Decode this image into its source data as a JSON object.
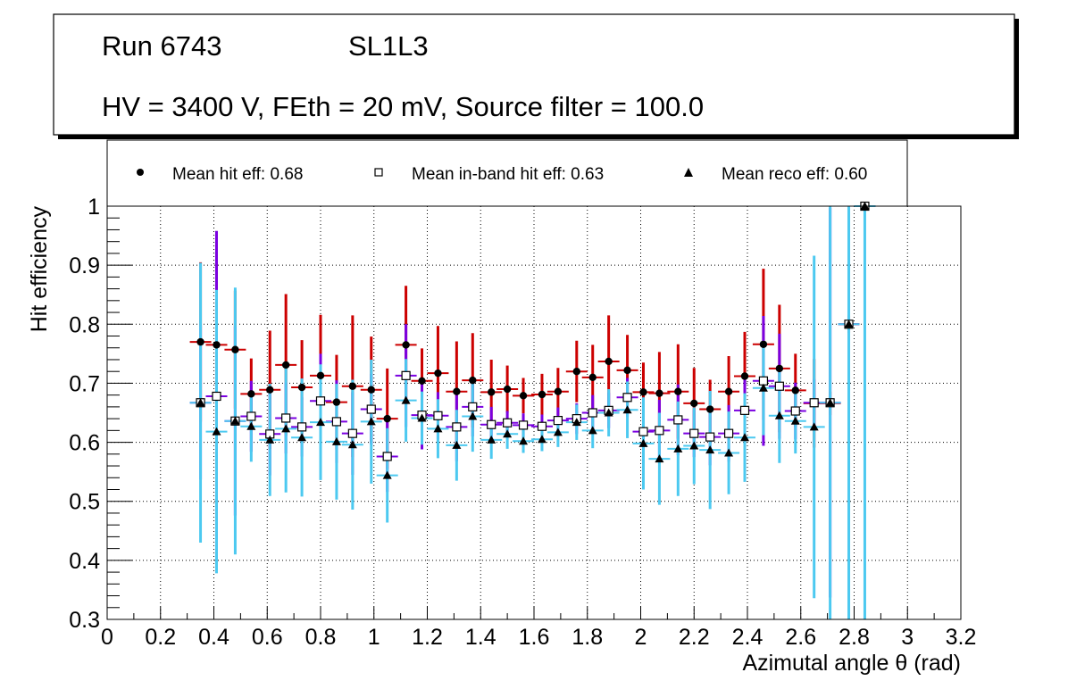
{
  "header": {
    "run": "Run 6743",
    "chamber": "SL1L3",
    "conditions": "HV = 3400 V, FEth = 20 mV, Source filter = 100.0"
  },
  "legend": {
    "hit": "Mean hit  eff: 0.68",
    "inband": "Mean in-band hit eff: 0.63",
    "reco": "Mean reco eff: 0.60"
  },
  "chart_data": {
    "type": "scatter",
    "xlabel": "Azimutal angle θ (rad)",
    "ylabel": "Hit efficiency",
    "xlim": [
      0,
      3.2
    ],
    "ylim": [
      0.3,
      1.0
    ],
    "grid": true,
    "legend_position": "top",
    "x_ticks": [
      "0",
      "0.2",
      "0.4",
      "0.6",
      "0.8",
      "1",
      "1.2",
      "1.4",
      "1.6",
      "1.8",
      "2",
      "2.2",
      "2.4",
      "2.6",
      "2.8",
      "3",
      "3.2"
    ],
    "y_ticks": [
      "0.3",
      "0.4",
      "0.5",
      "0.6",
      "0.7",
      "0.8",
      "0.9",
      "1"
    ],
    "x": [
      0.35,
      0.41,
      0.48,
      0.54,
      0.61,
      0.67,
      0.73,
      0.8,
      0.86,
      0.92,
      0.99,
      1.05,
      1.12,
      1.18,
      1.24,
      1.31,
      1.37,
      1.44,
      1.5,
      1.56,
      1.63,
      1.69,
      1.76,
      1.82,
      1.88,
      1.95,
      2.01,
      2.07,
      2.14,
      2.2,
      2.26,
      2.33,
      2.39,
      2.46,
      2.52,
      2.58,
      2.65,
      2.71,
      2.78,
      2.84
    ],
    "series": [
      {
        "name": "Mean hit eff",
        "marker": "circle",
        "color": "#000000",
        "error_color": "#cc0000",
        "values": [
          0.77,
          0.765,
          0.757,
          0.682,
          0.689,
          0.731,
          0.693,
          0.713,
          0.668,
          0.695,
          0.689,
          0.64,
          0.765,
          0.704,
          0.717,
          0.686,
          0.705,
          0.685,
          0.69,
          0.679,
          0.681,
          0.686,
          0.72,
          0.71,
          0.737,
          0.722,
          0.685,
          0.683,
          0.686,
          0.666,
          0.656,
          0.686,
          0.712,
          0.766,
          0.725,
          0.688,
          0.666,
          0.666,
          0.8,
          1.0
        ],
        "errors": [
          0.135,
          0.14,
          0.1,
          0.06,
          0.1,
          0.12,
          0.08,
          0.103,
          0.08,
          0.12,
          0.09,
          0.085,
          0.1,
          0.055,
          0.08,
          0.085,
          0.08,
          0.055,
          0.04,
          0.03,
          0.035,
          0.04,
          0.052,
          0.055,
          0.078,
          0.06,
          0.05,
          0.07,
          0.08,
          0.06,
          0.05,
          0.06,
          0.075,
          0.128,
          0.108,
          0.062,
          0.075,
          0.02,
          0.015,
          0.005
        ]
      },
      {
        "name": "Mean in-band hit eff",
        "marker": "square",
        "color": "#000000",
        "fill": "#ffffff",
        "error_color": "#7a00e0",
        "values": [
          0.667,
          0.678,
          0.636,
          0.644,
          0.614,
          0.641,
          0.626,
          0.67,
          0.635,
          0.615,
          0.656,
          0.576,
          0.713,
          0.646,
          0.645,
          0.626,
          0.66,
          0.63,
          0.633,
          0.629,
          0.627,
          0.637,
          0.64,
          0.65,
          0.654,
          0.676,
          0.618,
          0.62,
          0.638,
          0.615,
          0.609,
          0.615,
          0.654,
          0.704,
          0.695,
          0.653,
          0.667,
          0.667,
          0.8,
          1.0
        ],
        "errors": [
          0.13,
          0.28,
          0.16,
          0.06,
          0.07,
          0.06,
          0.05,
          0.08,
          0.07,
          0.07,
          0.06,
          0.06,
          0.087,
          0.058,
          0.04,
          0.058,
          0.05,
          0.03,
          0.02,
          0.02,
          0.02,
          0.022,
          0.026,
          0.03,
          0.03,
          0.033,
          0.055,
          0.052,
          0.06,
          0.04,
          0.048,
          0.048,
          0.058,
          0.11,
          0.089,
          0.048,
          0.04,
          0.33,
          0.01,
          0.005
        ]
      },
      {
        "name": "Mean reco eff",
        "marker": "triangle",
        "color": "#000000",
        "error_color": "#4cc9f0",
        "values": [
          0.667,
          0.618,
          0.636,
          0.627,
          0.604,
          0.623,
          0.608,
          0.634,
          0.601,
          0.596,
          0.635,
          0.544,
          0.671,
          0.641,
          0.623,
          0.595,
          0.644,
          0.604,
          0.614,
          0.602,
          0.605,
          0.617,
          0.634,
          0.62,
          0.65,
          0.655,
          0.598,
          0.572,
          0.589,
          0.594,
          0.587,
          0.582,
          0.608,
          0.692,
          0.645,
          0.636,
          0.626,
          0.667,
          0.8,
          1.0
        ],
        "errors": [
          0.237,
          0.24,
          0.226,
          0.06,
          0.095,
          0.108,
          0.1,
          0.098,
          0.098,
          0.11,
          0.105,
          0.08,
          0.07,
          0.045,
          0.05,
          0.06,
          0.06,
          0.032,
          0.025,
          0.02,
          0.02,
          0.025,
          0.03,
          0.03,
          0.04,
          0.048,
          0.078,
          0.078,
          0.08,
          0.065,
          0.1,
          0.07,
          0.075,
          0.08,
          0.08,
          0.055,
          0.29,
          0.667,
          0.5,
          0.7
        ]
      }
    ]
  }
}
